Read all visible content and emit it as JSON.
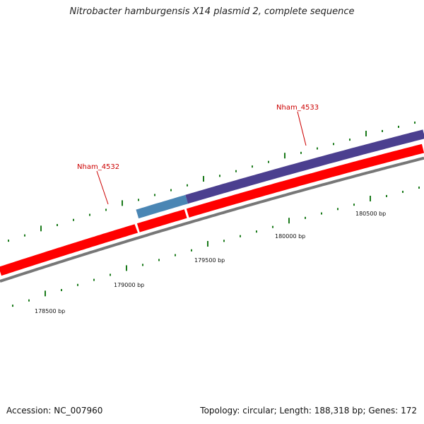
{
  "title": "Nitrobacter hamburgensis X14 plasmid 2, complete sequence",
  "footer": {
    "accession": "Accession: NC_007960",
    "summary": "Topology: circular; Length: 188,318 bp; Genes: 172"
  },
  "genes": [
    {
      "name": "Nham_4532",
      "start": 178890,
      "end": 179210,
      "color": "#4a86b4"
    },
    {
      "name": "Nham_4533",
      "start": 179210,
      "end": 180960,
      "color": "#4b3f8f"
    }
  ],
  "cds": [
    {
      "start": 178000,
      "end": 178890,
      "color": "#ff0000"
    },
    {
      "start": 178890,
      "end": 179210,
      "color": "#ff0000"
    },
    {
      "start": 179210,
      "end": 180960,
      "color": "#ff0000"
    }
  ],
  "backbone_color": "#777777",
  "tick_color": "#1a7a1a",
  "position_labels": [
    "178500 bp",
    "179000 bp",
    "179500 bp",
    "180000 bp",
    "180500 bp"
  ]
}
